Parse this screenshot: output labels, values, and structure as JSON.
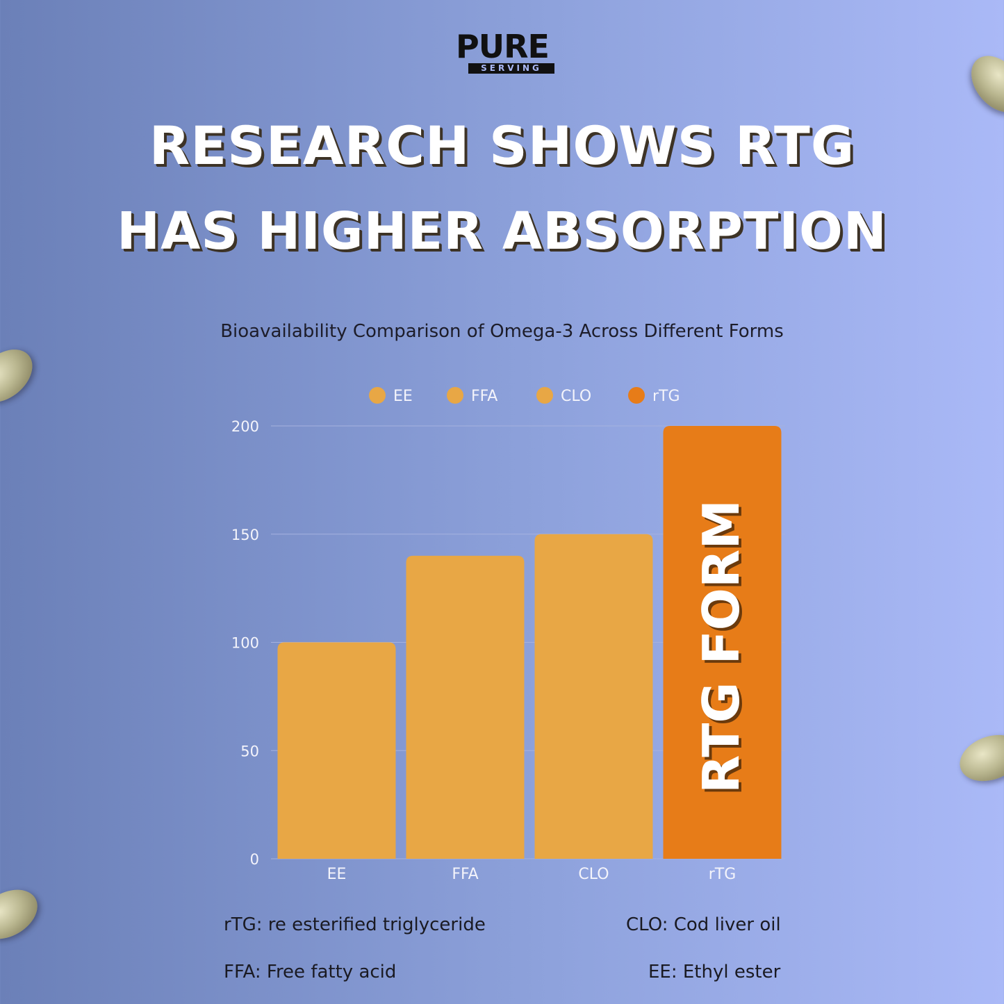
{
  "brand": {
    "logo_main": "PURE",
    "logo_sub": "SERVING"
  },
  "headline": {
    "line1": "RESEARCH SHOWS RTG",
    "line2": "HAS HIGHER ABSORPTION"
  },
  "colors": {
    "bar_default": "#e8a745",
    "bar_highlight": "#e77c18",
    "grid": "#a6b2df",
    "text_light": "#f4f4fb"
  },
  "chart_data": {
    "type": "bar",
    "title": "Bioavailability Comparison of Omega-3 Across Different Forms",
    "categories": [
      "EE",
      "FFA",
      "CLO",
      "rTG"
    ],
    "values": [
      100,
      140,
      150,
      200
    ],
    "yticks": [
      0,
      50,
      100,
      150,
      200
    ],
    "ylim": [
      0,
      200
    ],
    "legend": [
      "EE",
      "FFA",
      "CLO",
      "rTG"
    ],
    "legend_position": "top-center",
    "highlight_index": 3,
    "highlight_label": "RTG FORM",
    "grid": true
  },
  "notes": {
    "rtg": "rTG: re esterified triglyceride",
    "clo": "CLO: Cod liver oil",
    "ffa": "FFA: Free fatty acid",
    "ee": "EE: Ethyl ester"
  }
}
